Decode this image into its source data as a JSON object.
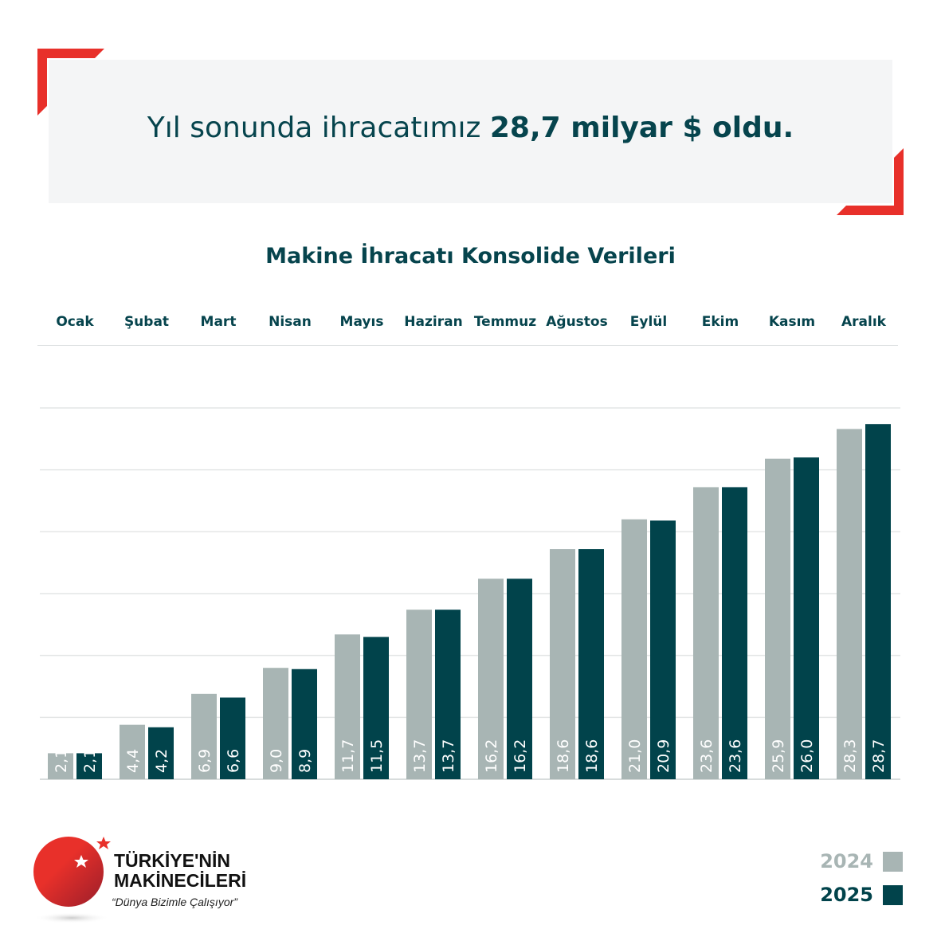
{
  "headline": {
    "prefix": "Yıl sonunda ihracatımız ",
    "bold": "28,7 milyar $ oldu."
  },
  "colors": {
    "accent": "#e8302a",
    "y2024": "#a8b5b4",
    "y2025": "#01434b",
    "text": "#06444d"
  },
  "chart_data": {
    "type": "bar",
    "title": "Makine İhracatı Konsolide Verileri",
    "categories": [
      "Ocak",
      "Şubat",
      "Mart",
      "Nisan",
      "Mayıs",
      "Haziran",
      "Temmuz",
      "Ağustos",
      "Eylül",
      "Ekim",
      "Kasım",
      "Aralık"
    ],
    "series": [
      {
        "name": "2024",
        "values": [
          2.1,
          4.4,
          6.9,
          9.0,
          11.7,
          13.7,
          16.2,
          18.6,
          21.0,
          23.6,
          25.9,
          28.3
        ],
        "labels": [
          "2,1",
          "4,4",
          "6,9",
          "9,0",
          "11,7",
          "13,7",
          "16,2",
          "18,6",
          "21,0",
          "23,6",
          "25,9",
          "28,3"
        ]
      },
      {
        "name": "2025",
        "values": [
          2.1,
          4.2,
          6.6,
          8.9,
          11.5,
          13.7,
          16.2,
          18.6,
          20.9,
          23.6,
          26.0,
          28.7
        ],
        "labels": [
          "2,1",
          "4,2",
          "6,6",
          "8,9",
          "11,5",
          "13,7",
          "16,2",
          "18,6",
          "20,9",
          "23,6",
          "26,0",
          "28,7"
        ]
      }
    ],
    "ylim": [
      0,
      30
    ],
    "grid": true,
    "legend": "bottom-right"
  },
  "logo": {
    "line1": "TÜRKİYE'NİN",
    "line2": "MAKİNECİLERİ",
    "slogan": "“Dünya Bizimle Çalışıyor”"
  }
}
